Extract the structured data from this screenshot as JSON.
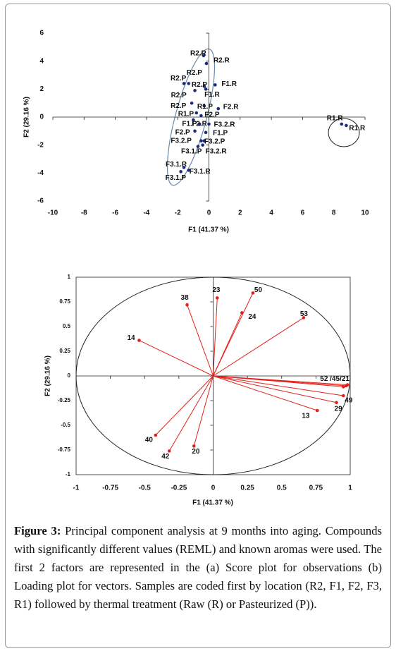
{
  "chart_data": [
    {
      "type": "scatter",
      "xlabel": "F1 (41.37 %)",
      "ylabel": "F2 (29.16 %)",
      "xlim": [
        -10,
        10
      ],
      "ylim": [
        -6,
        6
      ],
      "xticks": [
        -10,
        -8,
        -6,
        -4,
        -2,
        0,
        2,
        4,
        6,
        8,
        10
      ],
      "yticks": [
        -6,
        -4,
        -2,
        0,
        2,
        4,
        6
      ],
      "color": "#1c2a80",
      "labels": [
        "R2.R",
        "R2.R",
        "R2.P",
        "R2.P",
        "R2.P",
        "F1.R",
        "F1.R",
        "R2.P",
        "R2.P",
        "R1.P",
        "F2.R",
        "R1.P",
        "F2.P",
        "F1.P",
        "F2.R",
        "F3.2.R",
        "F2.P",
        "F1.P",
        "F3.2.P",
        "F3.2.P",
        "F3.1.P",
        "F3.2.R",
        "F3.1.R",
        "F3.1.R",
        "F3.1.P",
        "R1.R",
        "R1.R"
      ],
      "x": [
        -0.34,
        -0.16,
        -1.6,
        -1.3,
        -0.3,
        0.4,
        -0.2,
        -0.9,
        -1.1,
        -0.3,
        0.6,
        -0.8,
        -0.5,
        -1.0,
        -0.6,
        0.0,
        -0.9,
        -0.2,
        -0.5,
        -0.3,
        -0.7,
        -0.4,
        -1.6,
        -1.3,
        -1.8,
        8.5,
        8.8
      ],
      "y": [
        4.39,
        3.83,
        2.4,
        2.4,
        2.2,
        2.3,
        2.0,
        1.9,
        1.0,
        0.8,
        0.6,
        0.3,
        0.1,
        -0.2,
        -0.5,
        -0.5,
        -1.0,
        -1.1,
        -1.7,
        -1.7,
        -2.1,
        -2.0,
        -3.6,
        -3.8,
        -3.9,
        -0.5,
        -0.6
      ]
    },
    {
      "type": "vector",
      "xlabel": "F1 (41.37 %)",
      "ylabel": "F2 (29.16 %)",
      "xlim": [
        -1,
        1
      ],
      "ylim": [
        -1,
        1
      ],
      "xticks": [
        -1,
        -0.75,
        -0.5,
        -0.25,
        0,
        0.25,
        0.5,
        0.75,
        1
      ],
      "yticks": [
        -1,
        -0.75,
        -0.5,
        -0.25,
        0,
        0.25,
        0.5,
        0.75,
        1
      ],
      "color": "#e32119",
      "labels": [
        "23",
        "50",
        "24",
        "53",
        "38",
        "14",
        "52 /45/21",
        null,
        null,
        "49",
        "29",
        "13",
        "40",
        "42",
        "20"
      ],
      "x": [
        0.03,
        0.29,
        0.21,
        0.66,
        -0.19,
        -0.54,
        0.95,
        0.97,
        0.98,
        0.95,
        0.9,
        0.76,
        -0.42,
        -0.32,
        -0.14
      ],
      "y": [
        0.79,
        0.84,
        0.64,
        0.59,
        0.72,
        0.36,
        -0.11,
        -0.1,
        -0.09,
        -0.2,
        -0.27,
        -0.35,
        -0.6,
        -0.76,
        -0.71
      ]
    }
  ],
  "caption": {
    "label": "Figure 3:",
    "text": "Principal component analysis at 9 months into aging. Compounds with significantly different values (REML) and known aromas were used. The first 2 factors are represented in the (a) Score plot for observations (b) Loading plot for vectors. Samples are coded first by location (R2, F1, F2, F3, R1) followed by thermal treatment (Raw (R) or Pasteurized (P))."
  }
}
